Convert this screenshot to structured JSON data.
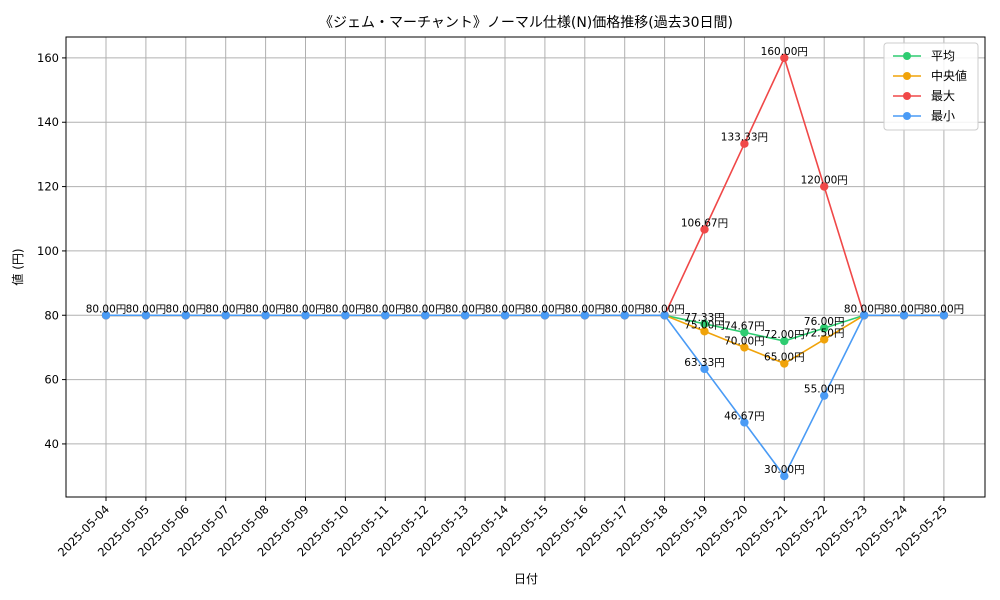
{
  "chart_data": {
    "type": "line",
    "title": "《ジェム・マーチャント》ノーマル仕様(N)価格推移(過去30日間)",
    "xlabel": "日付",
    "ylabel": "値 (円)",
    "ylim": [
      23.5,
      166.5
    ],
    "yticks": [
      40,
      60,
      80,
      100,
      120,
      140,
      160
    ],
    "grid": true,
    "legend_position": "top-right",
    "categories": [
      "2025-05-04",
      "2025-05-05",
      "2025-05-06",
      "2025-05-07",
      "2025-05-08",
      "2025-05-09",
      "2025-05-10",
      "2025-05-11",
      "2025-05-12",
      "2025-05-13",
      "2025-05-14",
      "2025-05-15",
      "2025-05-16",
      "2025-05-17",
      "2025-05-18",
      "2025-05-19",
      "2025-05-20",
      "2025-05-21",
      "2025-05-22",
      "2025-05-23",
      "2025-05-24",
      "2025-05-25"
    ],
    "series": [
      {
        "name": "平均",
        "color": "#2ecc71",
        "values": [
          80,
          80,
          80,
          80,
          80,
          80,
          80,
          80,
          80,
          80,
          80,
          80,
          80,
          80,
          80,
          77.33,
          74.67,
          72.0,
          76.0,
          80,
          80,
          80
        ]
      },
      {
        "name": "中央値",
        "color": "#f0a30a",
        "values": [
          80,
          80,
          80,
          80,
          80,
          80,
          80,
          80,
          80,
          80,
          80,
          80,
          80,
          80,
          80,
          75.0,
          70.0,
          65.0,
          72.5,
          80,
          80,
          80
        ]
      },
      {
        "name": "最大",
        "color": "#f04848",
        "values": [
          80,
          80,
          80,
          80,
          80,
          80,
          80,
          80,
          80,
          80,
          80,
          80,
          80,
          80,
          80,
          106.67,
          133.33,
          160.0,
          120.0,
          80,
          80,
          80
        ]
      },
      {
        "name": "最小",
        "color": "#4a9bf5",
        "values": [
          80,
          80,
          80,
          80,
          80,
          80,
          80,
          80,
          80,
          80,
          80,
          80,
          80,
          80,
          80,
          63.33,
          46.67,
          30.0,
          55.0,
          80,
          80,
          80
        ]
      }
    ],
    "data_labels": [
      {
        "i": 0,
        "v": 80,
        "text": "80.00円"
      },
      {
        "i": 1,
        "v": 80,
        "text": "80.00円"
      },
      {
        "i": 2,
        "v": 80,
        "text": "80.00円"
      },
      {
        "i": 3,
        "v": 80,
        "text": "80.00円"
      },
      {
        "i": 4,
        "v": 80,
        "text": "80.00円"
      },
      {
        "i": 5,
        "v": 80,
        "text": "80.00円"
      },
      {
        "i": 6,
        "v": 80,
        "text": "80.00円"
      },
      {
        "i": 7,
        "v": 80,
        "text": "80.00円"
      },
      {
        "i": 8,
        "v": 80,
        "text": "80.00円"
      },
      {
        "i": 9,
        "v": 80,
        "text": "80.00円"
      },
      {
        "i": 10,
        "v": 80,
        "text": "80.00円"
      },
      {
        "i": 11,
        "v": 80,
        "text": "80.00円"
      },
      {
        "i": 12,
        "v": 80,
        "text": "80.00円"
      },
      {
        "i": 13,
        "v": 80,
        "text": "80.00円"
      },
      {
        "i": 14,
        "v": 80,
        "text": "80.00円"
      },
      {
        "i": 15,
        "v": 77.33,
        "text": "77.33円"
      },
      {
        "i": 15,
        "v": 75.0,
        "text": "75.00円"
      },
      {
        "i": 15,
        "v": 106.67,
        "text": "106.67円"
      },
      {
        "i": 15,
        "v": 63.33,
        "text": "63.33円"
      },
      {
        "i": 16,
        "v": 74.67,
        "text": "74.67円"
      },
      {
        "i": 16,
        "v": 70.0,
        "text": "70.00円"
      },
      {
        "i": 16,
        "v": 133.33,
        "text": "133.33円"
      },
      {
        "i": 16,
        "v": 46.67,
        "text": "46.67円"
      },
      {
        "i": 17,
        "v": 72.0,
        "text": "72.00円"
      },
      {
        "i": 17,
        "v": 65.0,
        "text": "65.00円"
      },
      {
        "i": 17,
        "v": 160.0,
        "text": "160.00円"
      },
      {
        "i": 17,
        "v": 30.0,
        "text": "30.00円"
      },
      {
        "i": 18,
        "v": 76.0,
        "text": "76.00円"
      },
      {
        "i": 18,
        "v": 72.5,
        "text": "72.50円"
      },
      {
        "i": 18,
        "v": 120.0,
        "text": "120.00円"
      },
      {
        "i": 18,
        "v": 55.0,
        "text": "55.00円"
      },
      {
        "i": 19,
        "v": 80,
        "text": "80.00円"
      },
      {
        "i": 20,
        "v": 80,
        "text": "80.00円"
      },
      {
        "i": 21,
        "v": 80,
        "text": "80.00円"
      }
    ]
  }
}
